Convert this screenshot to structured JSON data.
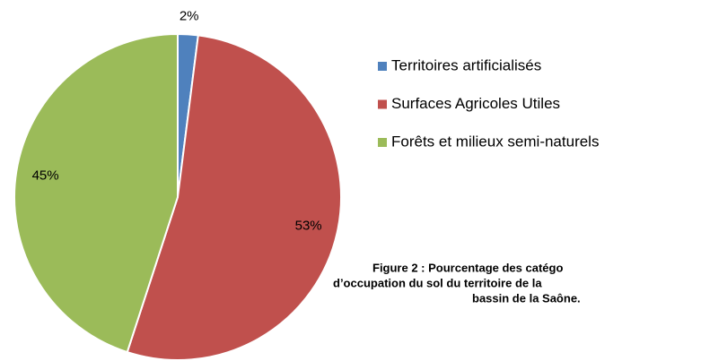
{
  "chart_data": {
    "type": "pie",
    "categories": [
      "Territoires artificialisés",
      "Surfaces Agricoles Utiles",
      "Forêts et milieux semi-naturels"
    ],
    "values": [
      2,
      53,
      45
    ],
    "value_labels": [
      "2%",
      "53%",
      "45%"
    ],
    "colors": [
      "#4f81bd",
      "#c0504d",
      "#9bbb59"
    ],
    "legend": "right",
    "caption": [
      "Figure 2 : Pourcentage des catégo",
      "d’occupation du sol du territoire de la",
      "bassin de la Saône."
    ]
  }
}
